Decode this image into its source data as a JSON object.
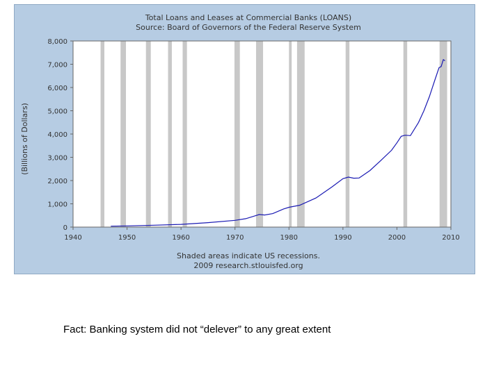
{
  "chart_data": {
    "type": "line",
    "title": "Total Loans and Leases at Commercial Banks (LOANS)",
    "subtitle": "Source: Board of Governors of the Federal Reserve System",
    "ylabel": "(Billions of Dollars)",
    "xlabel": "",
    "footnote_1": "Shaded areas indicate US recessions.",
    "footnote_2": "2009 research.stlouisfed.org",
    "xlim": [
      1940,
      2010
    ],
    "ylim": [
      0,
      8000
    ],
    "x_ticks": [
      "1940",
      "1950",
      "1960",
      "1970",
      "1980",
      "1990",
      "2000",
      "2010"
    ],
    "y_ticks": [
      "0",
      "1,000",
      "2,000",
      "3,000",
      "4,000",
      "5,000",
      "6,000",
      "7,000",
      "8,000"
    ],
    "grid": false,
    "recessions": [
      [
        1945.1,
        1945.8
      ],
      [
        1948.8,
        1949.8
      ],
      [
        1953.5,
        1954.4
      ],
      [
        1957.6,
        1958.3
      ],
      [
        1960.3,
        1961.1
      ],
      [
        1969.9,
        1970.9
      ],
      [
        1973.9,
        1975.2
      ],
      [
        1980.0,
        1980.5
      ],
      [
        1981.5,
        1982.9
      ],
      [
        1990.5,
        1991.2
      ],
      [
        2001.2,
        2001.9
      ],
      [
        2007.9,
        2009.3
      ]
    ],
    "series": [
      {
        "values": [
          [
            1947.0,
            38
          ],
          [
            1950.0,
            52
          ],
          [
            1955.0,
            80
          ],
          [
            1960.0,
            115
          ],
          [
            1965.0,
            190
          ],
          [
            1970.0,
            290
          ],
          [
            1972.0,
            360
          ],
          [
            1973.5,
            470
          ],
          [
            1974.5,
            540
          ],
          [
            1975.5,
            520
          ],
          [
            1977.0,
            580
          ],
          [
            1979.0,
            780
          ],
          [
            1980.0,
            850
          ],
          [
            1982.0,
            940
          ],
          [
            1985.0,
            1250
          ],
          [
            1988.0,
            1730
          ],
          [
            1990.0,
            2080
          ],
          [
            1991.0,
            2150
          ],
          [
            1992.0,
            2100
          ],
          [
            1993.0,
            2110
          ],
          [
            1995.0,
            2430
          ],
          [
            1997.0,
            2860
          ],
          [
            1999.0,
            3300
          ],
          [
            2000.0,
            3620
          ],
          [
            2000.8,
            3900
          ],
          [
            2001.5,
            3950
          ],
          [
            2002.5,
            3930
          ],
          [
            2004.0,
            4500
          ],
          [
            2005.0,
            5000
          ],
          [
            2006.0,
            5600
          ],
          [
            2007.0,
            6300
          ],
          [
            2007.8,
            6850
          ],
          [
            2008.2,
            6900
          ],
          [
            2008.6,
            7200
          ],
          [
            2008.9,
            7150
          ]
        ]
      }
    ],
    "colors": {
      "panel": "#b6cce3",
      "plot_bg": "#ffffff",
      "recession": "#c8c8c8",
      "line": "#1a1ab3",
      "text": "#333333"
    }
  },
  "caption": "Fact: Banking system did not “delever” to any great extent"
}
